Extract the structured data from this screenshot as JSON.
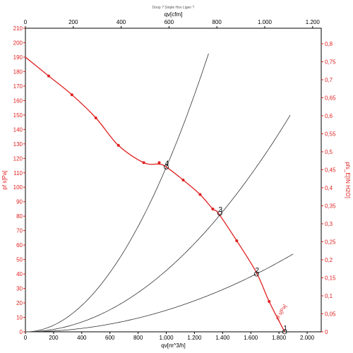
{
  "chart_data": {
    "type": "line",
    "title": "Doop ? Sinple Hov Ligen ?",
    "x_bottom": {
      "label": "qv[m^3/h]",
      "range": [
        0,
        2100
      ],
      "ticks": [
        "0",
        "200",
        "400",
        "600",
        "800",
        "1.000",
        "1.200",
        "1.400",
        "1.600",
        "1.800",
        "2.000"
      ]
    },
    "x_top": {
      "label": "qv[cfm]",
      "range": [
        0,
        1236
      ],
      "ticks": [
        "0",
        "200",
        "400",
        "600",
        "800",
        "1.000",
        "1.200"
      ]
    },
    "y_left": {
      "label": "pf s[Pa]",
      "range": [
        0,
        210
      ],
      "ticks": [
        "0",
        "10",
        "20",
        "30",
        "40",
        "50",
        "60",
        "70",
        "80",
        "90",
        "100",
        "110",
        "120",
        "130",
        "140",
        "150",
        "160",
        "170",
        "180",
        "190",
        "200",
        "210"
      ]
    },
    "y_right": {
      "label": "pfs_E[IN H2O]",
      "range": [
        0,
        0.843
      ],
      "ticks": [
        "0",
        "0,05",
        "0,1",
        "0,15",
        "0,2",
        "0,25",
        "0,3",
        "0,35",
        "0,4",
        "0,45",
        "0,5",
        "0,55",
        "0,6",
        "0,65",
        "0,7",
        "0,75",
        "0,8"
      ]
    },
    "series": [
      {
        "role": "fan-curve",
        "label": "pf s[Pa]",
        "color": "#e02020",
        "x": [
          0,
          165,
          330,
          500,
          660,
          840,
          950,
          1000,
          1120,
          1240,
          1330,
          1370,
          1500,
          1640,
          1730,
          1840
        ],
        "y": [
          190,
          177,
          164,
          148,
          129,
          117,
          116,
          114,
          105,
          95,
          85,
          82,
          63,
          41,
          21,
          0
        ],
        "markers_x": [
          165,
          330,
          500,
          660,
          840,
          950,
          1120,
          1240,
          1330,
          1500,
          1730
        ],
        "markers_y": [
          177,
          164,
          148,
          129,
          117,
          117,
          105,
          95,
          85,
          63,
          21
        ]
      },
      {
        "role": "system-curve",
        "label": "4",
        "color": "#333333",
        "k": 0.0001139,
        "x_max": 1300
      },
      {
        "role": "system-curve",
        "label": "3",
        "color": "#333333",
        "k": 4.24e-05,
        "x_max": 1880
      },
      {
        "role": "system-curve",
        "label": "2",
        "color": "#333333",
        "k": 1.49e-05,
        "x_max": 1900
      }
    ],
    "operating_points": [
      {
        "label": "4",
        "x": 1000,
        "y": 114
      },
      {
        "label": "3",
        "x": 1380,
        "y": 82
      },
      {
        "label": "2",
        "x": 1640,
        "y": 40
      },
      {
        "label": "1",
        "x": 1840,
        "y": 0
      }
    ],
    "grid": false
  }
}
